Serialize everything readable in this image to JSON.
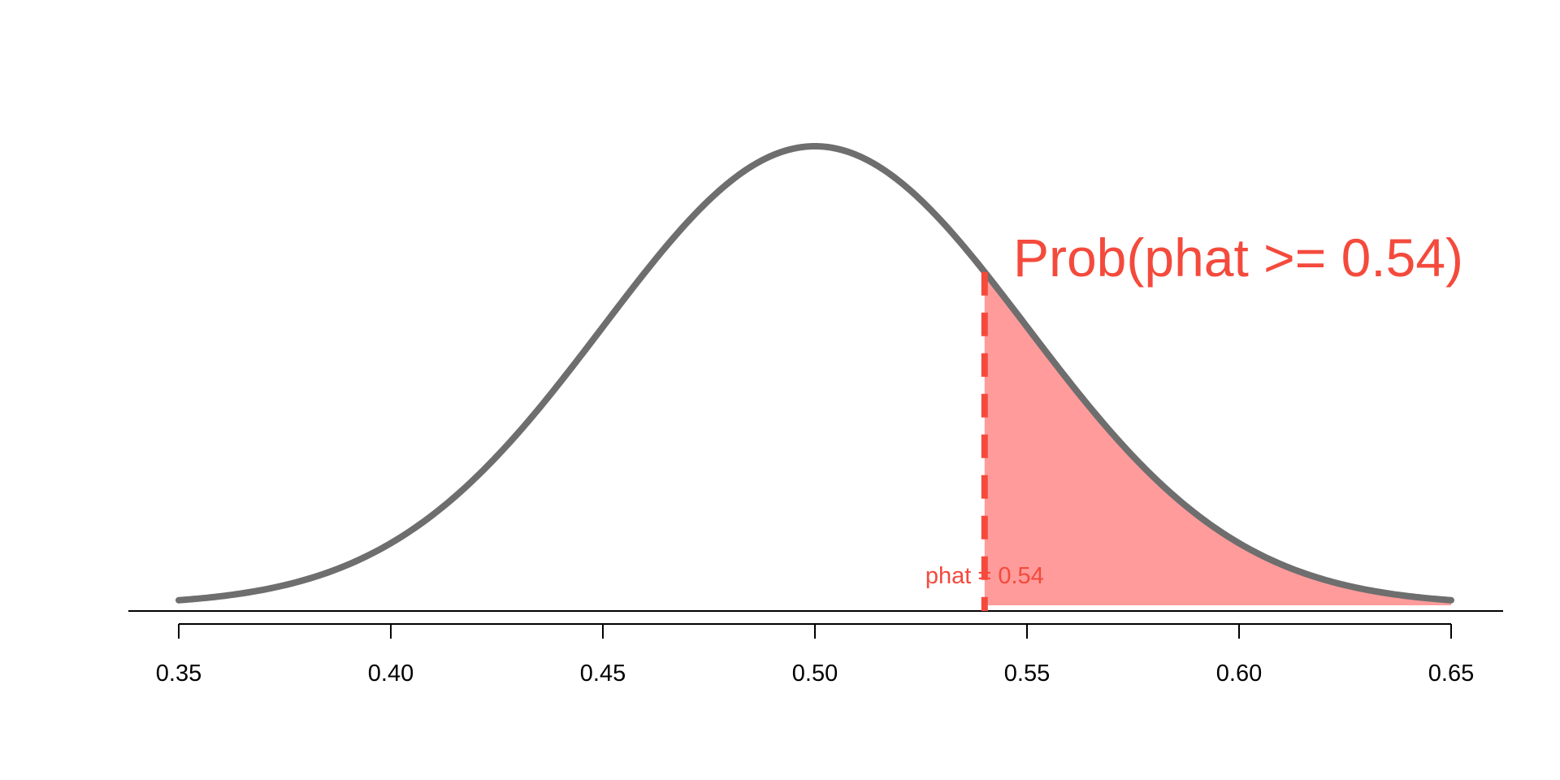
{
  "chart_data": {
    "type": "area",
    "distribution": "normal",
    "mean": 0.5,
    "sd": 0.05,
    "xlim": [
      0.35,
      0.65
    ],
    "x_ticks": [
      0.35,
      0.4,
      0.45,
      0.5,
      0.55,
      0.6,
      0.65
    ],
    "x_tick_labels": [
      "0.35",
      "0.40",
      "0.45",
      "0.50",
      "0.55",
      "0.60",
      "0.65"
    ],
    "shaded_region": {
      "from": 0.54,
      "to": 0.65
    },
    "cutoff": 0.54,
    "cutoff_label": "phat = 0.54",
    "region_label": "Prob(phat >= 0.54)",
    "title": "",
    "xlabel": "",
    "ylabel": "",
    "grid": false,
    "colors": {
      "curve": "#6e6e6e",
      "shade": "#ff9b9b",
      "highlight": "#f44a3c",
      "axis": "#000000"
    }
  }
}
